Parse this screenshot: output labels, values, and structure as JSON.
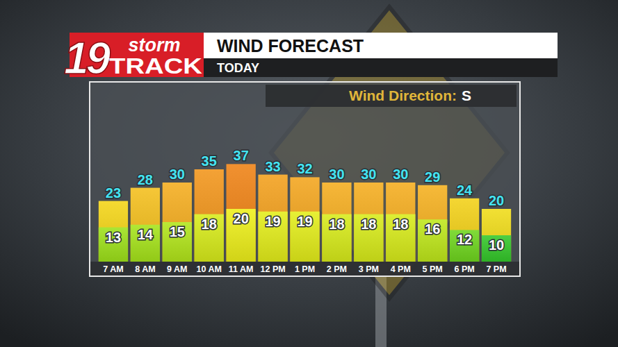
{
  "logo": {
    "number": "19",
    "line1": "storm",
    "line2": "TRACK"
  },
  "chart_data": {
    "type": "bar",
    "title": "WIND FORECAST",
    "subtitle": "TODAY",
    "annotations": [
      "Wind Direction:",
      "S"
    ],
    "categories": [
      "7 AM",
      "8 AM",
      "9 AM",
      "10 AM",
      "11 AM",
      "12 PM",
      "1 PM",
      "2 PM",
      "3 PM",
      "4 PM",
      "5 PM",
      "6 PM",
      "7 PM"
    ],
    "series": [
      {
        "values": [
          23,
          28,
          30,
          35,
          37,
          33,
          32,
          30,
          30,
          30,
          29,
          24,
          20
        ],
        "colors": [
          "#f4d516",
          "#f4bf1c",
          "#f5ad1e",
          "#f2951a",
          "#ef8214",
          "#f3a01c",
          "#f3a51d",
          "#f5ad1e",
          "#f5ad1e",
          "#f5ad1e",
          "#f5b01e",
          "#f3d117",
          "#f0dc18"
        ]
      },
      {
        "values": [
          13,
          14,
          15,
          18,
          20,
          19,
          19,
          18,
          18,
          18,
          16,
          12,
          10
        ],
        "colors": [
          "#9ee21a",
          "#a6e41a",
          "#b2e61a",
          "#d8ec1a",
          "#eef01a",
          "#e4ee1a",
          "#e4ee1a",
          "#d8ec1a",
          "#d8ec1a",
          "#d8ec1a",
          "#bfe81a",
          "#6fd61e",
          "#34c82a"
        ]
      }
    ],
    "stacked": false,
    "data_labels": true,
    "tick_labels": "x",
    "ylim": [
      0,
      40
    ]
  }
}
